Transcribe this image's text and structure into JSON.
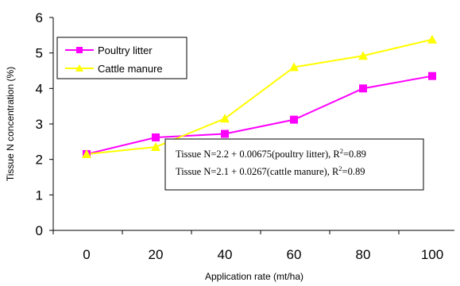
{
  "chart_data": {
    "type": "line",
    "xlabel": "Application rate (mt/ha)",
    "ylabel": "Tissue N concentration (%)",
    "categories": [
      "0",
      "20",
      "40",
      "60",
      "80",
      "100"
    ],
    "x": [
      0,
      20,
      40,
      60,
      80,
      100
    ],
    "ylim": [
      0,
      6
    ],
    "yticks": [
      "0",
      "1",
      "2",
      "3",
      "4",
      "5",
      "6"
    ],
    "grid": false,
    "legend_position": "top-left",
    "series": [
      {
        "name": "Poultry litter",
        "values": [
          2.15,
          2.62,
          2.72,
          3.12,
          4.0,
          4.35
        ],
        "color": "#ff00ff",
        "marker": "square"
      },
      {
        "name": "Cattle manure",
        "values": [
          2.15,
          2.35,
          3.15,
          4.6,
          4.92,
          5.38
        ],
        "color": "#ffff00",
        "marker": "triangle"
      }
    ],
    "annotations": {
      "line1": {
        "text": "Tissue N=2.2 + 0.00675(poultry litter), R",
        "sup": "2",
        "suffix": "=0.89"
      },
      "line2": {
        "text": "Tissue N=2.1 + 0.0267(cattle manure), R",
        "sup": "2",
        "suffix": "=0.89"
      }
    }
  }
}
